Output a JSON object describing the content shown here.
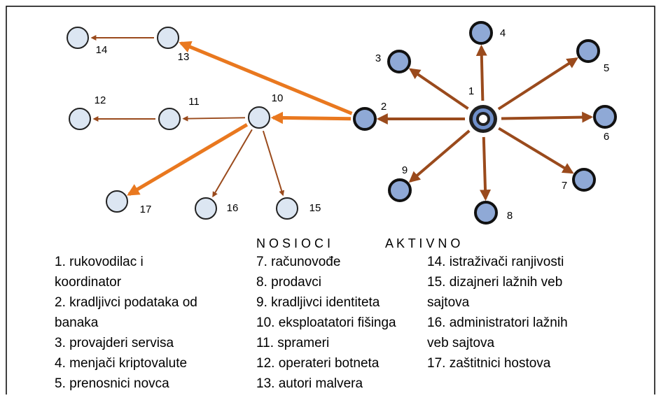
{
  "nodes": [
    {
      "label": "1"
    },
    {
      "label": "2"
    },
    {
      "label": "3"
    },
    {
      "label": "4"
    },
    {
      "label": "5"
    },
    {
      "label": "6"
    },
    {
      "label": "7"
    },
    {
      "label": "8"
    },
    {
      "label": "9"
    },
    {
      "label": "10"
    },
    {
      "label": "11"
    },
    {
      "label": "12"
    },
    {
      "label": "13"
    },
    {
      "label": "14"
    },
    {
      "label": "15"
    },
    {
      "label": "16"
    },
    {
      "label": "17"
    }
  ],
  "headings": [
    "N O S I O C I",
    "A K T I V N O"
  ],
  "legend": {
    "columns": [
      [
        [
          "1. rukovodilac i",
          "koordinator"
        ],
        [
          "2. kradljivci podataka od",
          "banaka"
        ],
        [
          "3. provajderi servisa"
        ],
        [
          "4. menjači kriptovalute"
        ],
        [
          "5. prenosnici novca"
        ]
      ],
      [
        [
          "7. računovođe"
        ],
        [
          "8. prodavci"
        ],
        [
          "9. kradljivci identiteta"
        ],
        [
          "10. eksploatatori fišinga"
        ],
        [
          "11. sprameri"
        ],
        [
          "12. operateri botneta"
        ],
        [
          "13. autori malvera"
        ]
      ],
      [
        [
          "14. istraživači ranjivosti"
        ],
        [
          "15. dizajneri lažnih veb",
          "sajtova"
        ],
        [
          "16. administratori lažnih",
          "veb sajtova"
        ],
        [
          "17. zaštitnici hostova"
        ]
      ]
    ]
  }
}
